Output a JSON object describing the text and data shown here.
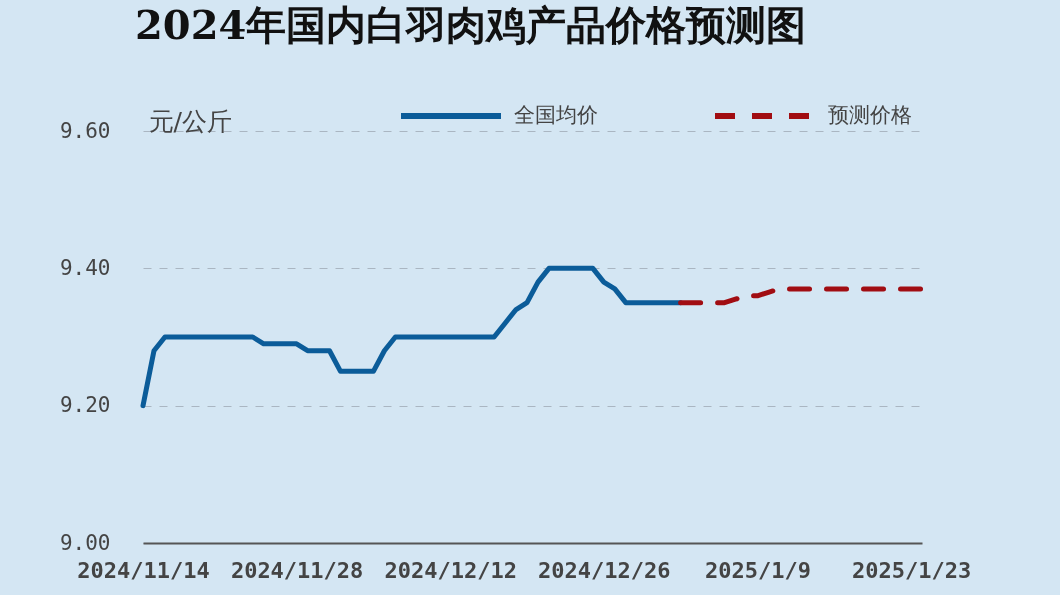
{
  "chart_data": {
    "type": "line",
    "title": "2024年国内白羽肉鸡产品价格预测图",
    "ylabel": "元/公斤",
    "series": [
      {
        "name": "全国均价",
        "color": "#0b5c99",
        "line_style": "solid",
        "x": [
          "2024-11-14",
          "2024-11-15",
          "2024-11-16",
          "2024-11-17",
          "2024-11-18",
          "2024-11-19",
          "2024-11-20",
          "2024-11-21",
          "2024-11-22",
          "2024-11-23",
          "2024-11-24",
          "2024-11-25",
          "2024-11-26",
          "2024-11-27",
          "2024-11-28",
          "2024-11-29",
          "2024-11-30",
          "2024-12-01",
          "2024-12-02",
          "2024-12-03",
          "2024-12-04",
          "2024-12-05",
          "2024-12-06",
          "2024-12-07",
          "2024-12-08",
          "2024-12-09",
          "2024-12-10",
          "2024-12-11",
          "2024-12-12",
          "2024-12-13",
          "2024-12-14",
          "2024-12-15",
          "2024-12-16",
          "2024-12-17",
          "2024-12-18",
          "2024-12-19",
          "2024-12-20",
          "2024-12-21",
          "2024-12-22",
          "2024-12-23",
          "2024-12-24",
          "2024-12-25",
          "2024-12-26",
          "2024-12-27",
          "2024-12-28",
          "2024-12-29",
          "2024-12-30",
          "2024-12-31",
          "2025-01-01",
          "2025-01-02"
        ],
        "values": [
          9.2,
          9.28,
          9.3,
          9.3,
          9.3,
          9.3,
          9.3,
          9.3,
          9.3,
          9.3,
          9.3,
          9.29,
          9.29,
          9.29,
          9.29,
          9.28,
          9.28,
          9.28,
          9.25,
          9.25,
          9.25,
          9.25,
          9.28,
          9.3,
          9.3,
          9.3,
          9.3,
          9.3,
          9.3,
          9.3,
          9.3,
          9.3,
          9.3,
          9.32,
          9.34,
          9.35,
          9.38,
          9.4,
          9.4,
          9.4,
          9.4,
          9.4,
          9.38,
          9.37,
          9.35,
          9.35,
          9.35,
          9.35,
          9.35,
          9.35
        ]
      },
      {
        "name": "预测价格",
        "color": "#a10d12",
        "line_style": "dashed",
        "x": [
          "2025-01-02",
          "2025-01-03",
          "2025-01-04",
          "2025-01-05",
          "2025-01-06",
          "2025-01-07",
          "2025-01-08",
          "2025-01-09",
          "2025-01-10",
          "2025-01-11",
          "2025-01-12",
          "2025-01-13",
          "2025-01-14",
          "2025-01-15",
          "2025-01-16",
          "2025-01-17",
          "2025-01-18",
          "2025-01-19",
          "2025-01-20",
          "2025-01-21",
          "2025-01-22",
          "2025-01-23",
          "2025-01-24"
        ],
        "values": [
          9.35,
          9.35,
          9.35,
          9.35,
          9.35,
          9.355,
          9.36,
          9.36,
          9.365,
          9.37,
          9.37,
          9.37,
          9.37,
          9.37,
          9.37,
          9.37,
          9.37,
          9.37,
          9.37,
          9.37,
          9.37,
          9.37,
          9.37
        ]
      }
    ],
    "xlim": [
      "2024-11-14",
      "2025-01-24"
    ],
    "xticks": [
      {
        "value": "2024-11-14",
        "label": "2024/11/14"
      },
      {
        "value": "2024-11-28",
        "label": "2024/11/28"
      },
      {
        "value": "2024-12-12",
        "label": "2024/12/12"
      },
      {
        "value": "2024-12-26",
        "label": "2024/12/26"
      },
      {
        "value": "2025-01-09",
        "label": "2025/1/9"
      },
      {
        "value": "2025-01-23",
        "label": "2025/1/23"
      }
    ],
    "ylim": [
      9.0,
      9.6
    ],
    "yticks": [
      {
        "value": 9.0,
        "label": "9.00"
      },
      {
        "value": 9.2,
        "label": "9.20"
      },
      {
        "value": 9.4,
        "label": "9.40"
      },
      {
        "value": 9.6,
        "label": "9.60"
      }
    ],
    "grid": "y",
    "legend": "top"
  }
}
